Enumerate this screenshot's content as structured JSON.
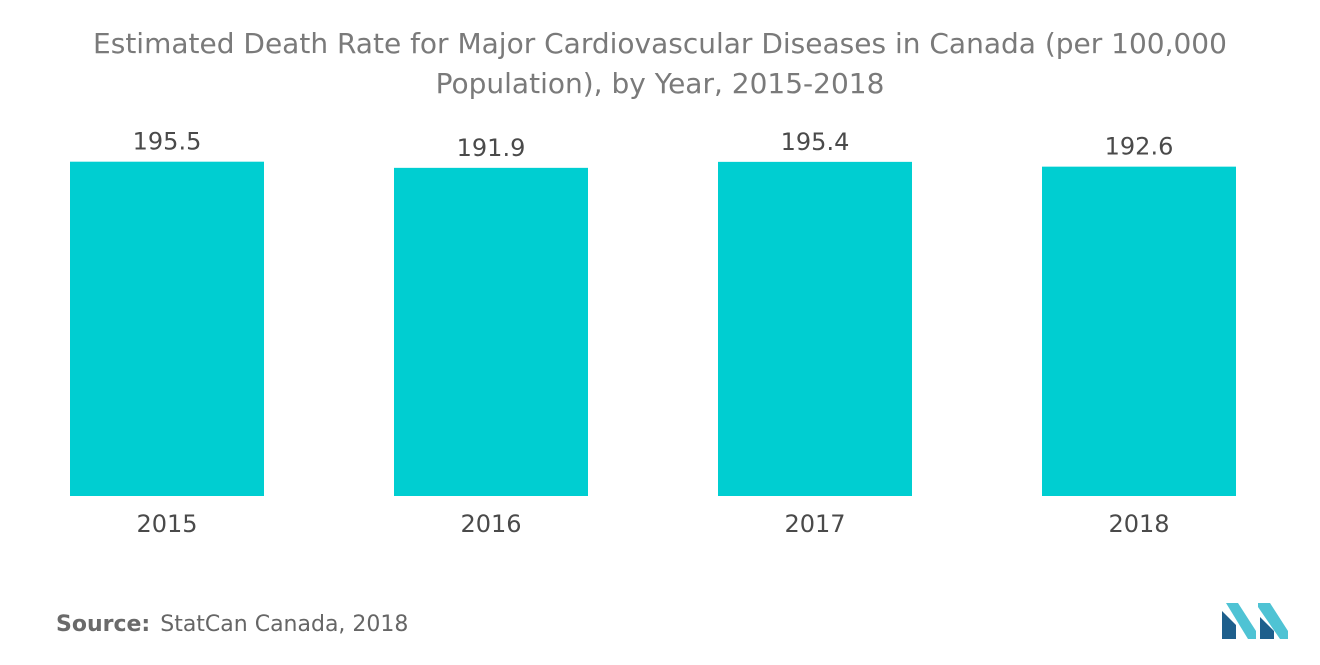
{
  "chart_data": {
    "type": "bar",
    "title": "Estimated Death Rate for Major Cardiovascular Diseases in Canada (per 100,000 Population), by Year, 2015-2018",
    "categories": [
      "2015",
      "2016",
      "2017",
      "2018"
    ],
    "values": [
      195.5,
      191.9,
      195.4,
      192.6
    ],
    "value_labels": [
      "195.5",
      "191.9",
      "195.4",
      "192.6"
    ],
    "xlabel": "",
    "ylabel": "",
    "ylim": [
      0,
      200
    ],
    "grid": false,
    "legend": "none",
    "bar_color": "#00ced1"
  },
  "source": {
    "label": "Source:",
    "text": "StatCan Canada, 2018"
  },
  "logo": {
    "icon": "mordor-intelligence-logo-icon",
    "color_dark": "#1e5f8c",
    "color_light": "#4fc3d4"
  }
}
